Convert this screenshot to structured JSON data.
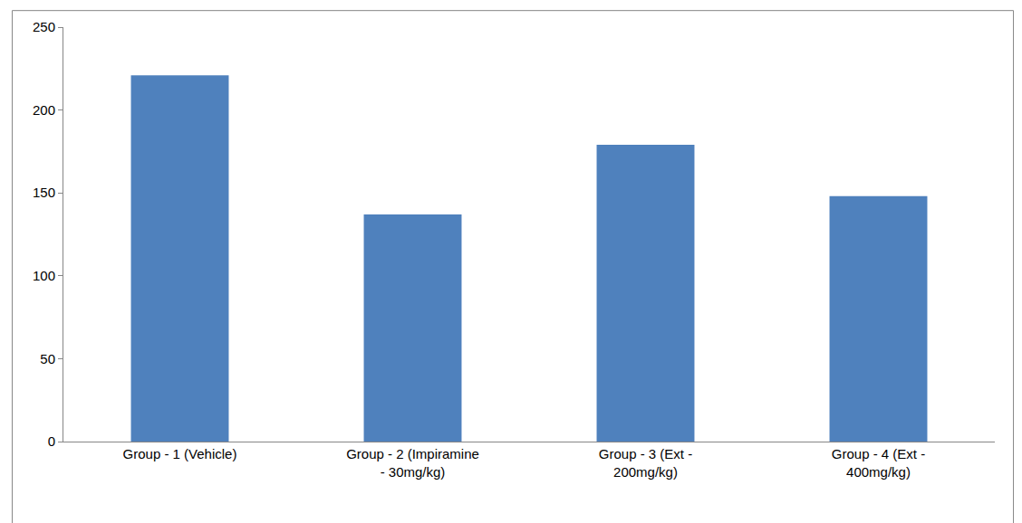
{
  "chart_data": {
    "type": "bar",
    "categories": [
      "Group - 1 (Vehicle)",
      "Group - 2 (Impiramine - 30mg/kg)",
      "Group - 3 (Ext - 200mg/kg)",
      "Group - 4 (Ext - 400mg/kg)"
    ],
    "values": [
      221,
      137,
      179,
      148
    ],
    "color": "#4f81bd",
    "ylim": [
      0,
      250
    ],
    "yticks": [
      0,
      50,
      100,
      150,
      200,
      250
    ],
    "grid": false
  }
}
